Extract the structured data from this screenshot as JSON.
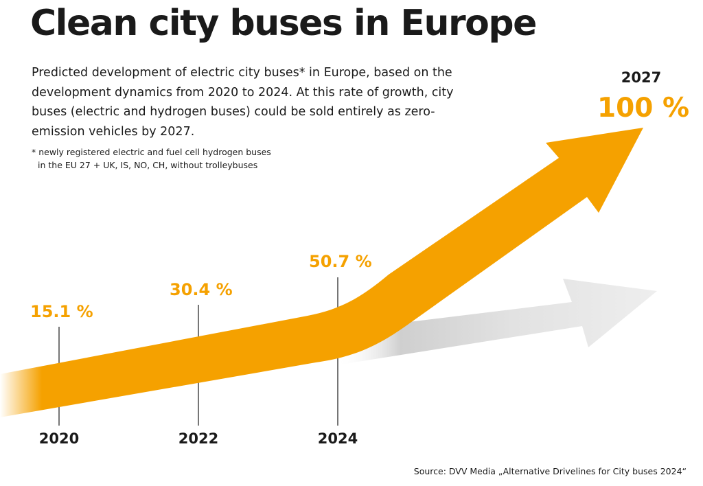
{
  "title": "Clean city buses in Europe",
  "subtitle": "Predicted development of electric city buses* in Europe, based on the development dynamics from 2020 to 2024. At this rate of growth, city buses (electric and hydrogen buses) could be sold entirely as zero-emission vehicles by 2027.",
  "footnote": {
    "line1": "* newly registered electric and fuel cell hydrogen buses",
    "line2": "in the EU 27 + UK, IS, NO, CH, without trolleybuses"
  },
  "source": "Source: DVV Media „Alternative Drivelines for City buses 2024“",
  "colors": {
    "accent": "#f5a100",
    "text": "#1a1a1a",
    "trend_gray": "#e0e0e0"
  },
  "chart_data": {
    "type": "line",
    "x": [
      2020,
      2022,
      2024,
      2027
    ],
    "values": [
      15.1,
      30.4,
      50.7,
      100
    ],
    "value_labels": [
      "15.1 %",
      "30.4 %",
      "50.7 %",
      "100 %"
    ],
    "tick_labels": [
      "2020",
      "2022",
      "2024"
    ],
    "end_year_label": "2027",
    "unit": "%",
    "ylim": [
      0,
      100
    ],
    "grid": false,
    "legend": "none"
  }
}
